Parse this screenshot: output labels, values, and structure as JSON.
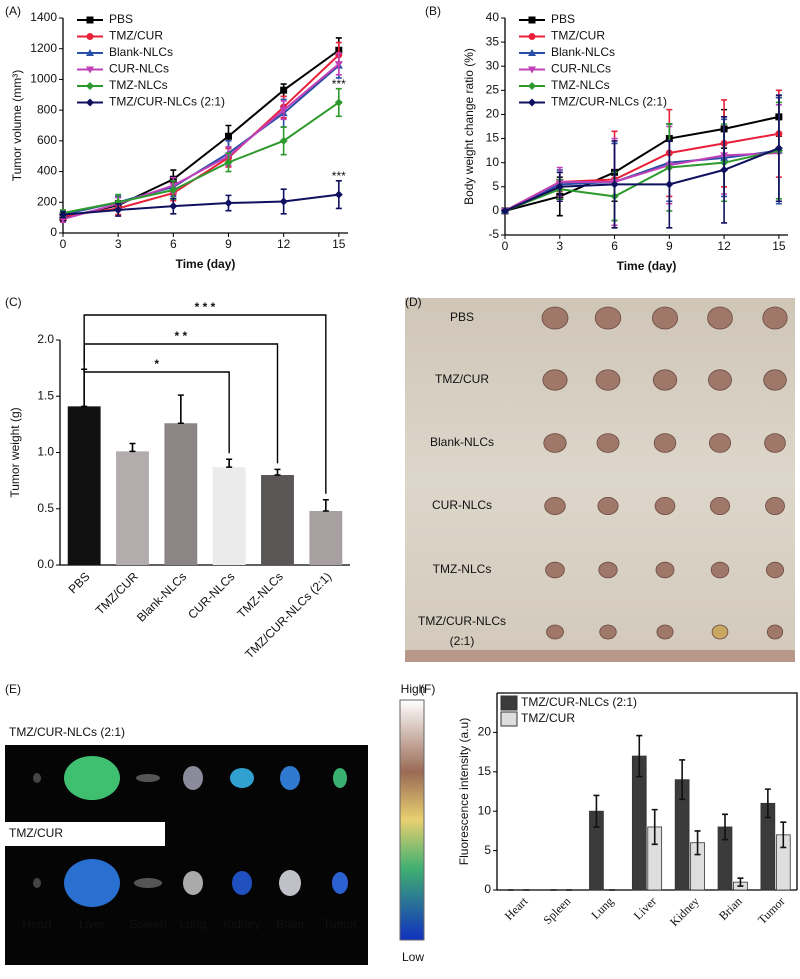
{
  "chart_data": [
    {
      "type": "line",
      "panel_label": "(A)",
      "x_label": "Time (day)",
      "y_label": "Tumor volume (mm³)",
      "x": [
        0,
        3,
        6,
        9,
        12,
        15
      ],
      "xlim": [
        0,
        15.5
      ],
      "xticks": [
        0,
        3,
        6,
        9,
        12,
        15
      ],
      "ylim": [
        0,
        1400
      ],
      "yticks": [
        0,
        200,
        400,
        600,
        800,
        1000,
        1200,
        1400
      ],
      "series": [
        {
          "name": "PBS",
          "color": "#000000",
          "values": [
            100,
            180,
            350,
            630,
            930,
            1190
          ],
          "errors": [
            20,
            30,
            60,
            70,
            40,
            80
          ]
        },
        {
          "name": "TMZ/CUR",
          "color": "#e8203a",
          "values": [
            110,
            160,
            260,
            490,
            820,
            1160
          ],
          "errors": [
            20,
            40,
            50,
            60,
            70,
            80
          ]
        },
        {
          "name": "Blank-NLCs",
          "color": "#2a4fa8",
          "values": [
            120,
            200,
            300,
            520,
            780,
            1090
          ],
          "errors": [
            20,
            40,
            60,
            80,
            90,
            80
          ]
        },
        {
          "name": "CUR-NLCs",
          "color": "#c040b8",
          "values": [
            90,
            190,
            310,
            500,
            800,
            1100
          ],
          "errors": [
            20,
            40,
            50,
            60,
            60,
            70
          ]
        },
        {
          "name": "TMZ-NLCs",
          "color": "#2e9a2e",
          "values": [
            130,
            200,
            280,
            460,
            600,
            850
          ],
          "errors": [
            20,
            50,
            60,
            60,
            90,
            90
          ]
        },
        {
          "name": "TMZ/CUR-NLCs (2:1)",
          "color": "#101060",
          "values": [
            120,
            150,
            175,
            195,
            205,
            250
          ],
          "errors": [
            20,
            40,
            50,
            50,
            80,
            90
          ]
        }
      ],
      "annotations": [
        "***",
        "***"
      ]
    },
    {
      "type": "line",
      "panel_label": "(B)",
      "x_label": "Time (day)",
      "y_label": "Body weight change ratio (%)",
      "x": [
        0,
        3,
        6,
        9,
        12,
        15
      ],
      "xlim": [
        0,
        15.5
      ],
      "xticks": [
        0,
        3,
        6,
        9,
        12,
        15
      ],
      "ylim": [
        -5,
        40
      ],
      "yticks": [
        -5,
        0,
        5,
        10,
        15,
        20,
        25,
        30,
        35,
        40
      ],
      "series": [
        {
          "name": "PBS",
          "color": "#000000",
          "values": [
            0,
            3,
            8,
            15,
            17,
            19.5
          ],
          "errors": [
            0,
            4,
            6,
            3,
            4,
            4
          ]
        },
        {
          "name": "TMZ/CUR",
          "color": "#e8203a",
          "values": [
            0,
            6,
            6.5,
            12,
            14,
            16
          ],
          "errors": [
            0,
            2,
            10,
            9,
            9,
            9
          ]
        },
        {
          "name": "Blank-NLCs",
          "color": "#2a4fa8",
          "values": [
            0,
            5.5,
            6,
            10,
            11,
            12.5
          ],
          "errors": [
            0,
            3,
            8,
            8,
            8,
            11
          ]
        },
        {
          "name": "CUR-NLCs",
          "color": "#c040b8",
          "values": [
            0,
            6,
            6,
            9.5,
            11.5,
            12
          ],
          "errors": [
            0,
            3,
            9,
            8,
            8,
            10
          ]
        },
        {
          "name": "TMZ-NLCs",
          "color": "#2e9a2e",
          "values": [
            0,
            4.5,
            3,
            9,
            10,
            12.5
          ],
          "errors": [
            0,
            2,
            5,
            9,
            8,
            10
          ]
        },
        {
          "name": "TMZ/CUR-NLCs (2:1)",
          "color": "#101060",
          "values": [
            0,
            5,
            5.5,
            5.5,
            8.5,
            13
          ],
          "errors": [
            0,
            3,
            9,
            9,
            11,
            11
          ]
        }
      ]
    },
    {
      "type": "bar",
      "panel_label": "(C)",
      "y_label": "Tumor weight (g)",
      "categories": [
        "PBS",
        "TMZ/CUR",
        "Blank-NLCs",
        "CUR-NLCs",
        "TMZ-NLCs",
        "TMZ/CUR-NLCs (2:1)"
      ],
      "values": [
        1.41,
        1.01,
        1.26,
        0.87,
        0.8,
        0.48
      ],
      "errors": [
        0.33,
        0.07,
        0.25,
        0.07,
        0.05,
        0.1
      ],
      "colors": [
        "#111111",
        "#b3acac",
        "#8c8585",
        "#ebebeb",
        "#5a5656",
        "#a8a0a0"
      ],
      "ylim": [
        0,
        2
      ],
      "yticks": [
        {
          "value": 0,
          "label": "0.0"
        },
        0.5,
        {
          "value": 1,
          "label": "1.0"
        },
        1.5,
        {
          "value": 2,
          "label": "2.0"
        }
      ],
      "annotations": [
        "*",
        "* *",
        "* * *"
      ]
    },
    {
      "type": "grouped_bar",
      "panel_label": "(F)",
      "y_label": "Fluorescence intensity (a.u)",
      "categories": [
        "Heart",
        "Spleen",
        "Lung",
        "Liver",
        "Kidney",
        "Brian",
        "Tumor"
      ],
      "ylim": [
        0,
        25
      ],
      "yticks": [
        0,
        5,
        10,
        15,
        20
      ],
      "series": [
        {
          "name": "TMZ/CUR-NLCs (2:1)",
          "color": "#3b3b3b",
          "values": [
            0,
            0,
            10,
            17,
            14,
            8,
            11
          ],
          "errors": [
            0,
            0,
            2,
            2.6,
            2.5,
            1.6,
            1.8
          ]
        },
        {
          "name": "TMZ/CUR",
          "color": "#dedede",
          "values": [
            0,
            0,
            0,
            8,
            6,
            1,
            7
          ],
          "errors": [
            0,
            0,
            0,
            2.2,
            1.5,
            0.5,
            1.6
          ]
        }
      ]
    }
  ],
  "photo": {
    "panel_label": "(D)",
    "rows": [
      [
        "PBS"
      ],
      [
        "TMZ/CUR"
      ],
      [
        "Blank-NLCs"
      ],
      [
        "CUR-NLCs"
      ],
      [
        "TMZ-NLCs"
      ],
      [
        "TMZ/CUR-NLCs",
        "(2:1)"
      ]
    ]
  },
  "imaging": {
    "panel_label": "(E)",
    "groups": [
      "TMZ/CUR-NLCs (2:1)",
      "TMZ/CUR"
    ],
    "organs": [
      "Heart",
      "Liver",
      "Spleen",
      "Lung",
      "Kidney",
      "Brain",
      "Tumor"
    ],
    "scale_high": "High",
    "scale_low": "Low"
  }
}
